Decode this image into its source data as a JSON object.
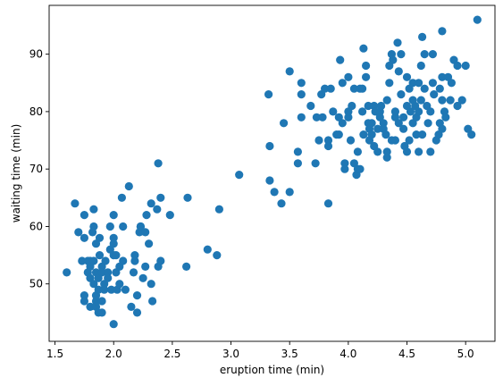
{
  "chart_data": {
    "type": "scatter",
    "title": "",
    "xlabel": "eruption time (min)",
    "ylabel": "waiting time (min)",
    "xlim": [
      1.45,
      5.25
    ],
    "ylim": [
      40,
      98.5
    ],
    "xticks": [
      1.5,
      2.0,
      2.5,
      3.0,
      3.5,
      4.0,
      4.5,
      5.0
    ],
    "xtick_labels": [
      "1.5",
      "2.0",
      "2.5",
      "3.0",
      "3.5",
      "4.0",
      "4.5",
      "5.0"
    ],
    "yticks": [
      50,
      60,
      70,
      80,
      90
    ],
    "ytick_labels": [
      "50",
      "60",
      "70",
      "80",
      "90"
    ],
    "grid": false,
    "marker_color": "#1f77b4",
    "series": [
      {
        "points": [
          [
            1.6,
            52
          ],
          [
            1.67,
            64
          ],
          [
            1.7,
            59
          ],
          [
            1.73,
            54
          ],
          [
            1.75,
            48
          ],
          [
            1.75,
            47
          ],
          [
            1.75,
            62
          ],
          [
            1.75,
            58
          ],
          [
            1.78,
            54
          ],
          [
            1.78,
            52
          ],
          [
            1.8,
            54
          ],
          [
            1.8,
            51
          ],
          [
            1.8,
            46
          ],
          [
            1.8,
            53
          ],
          [
            1.82,
            59
          ],
          [
            1.83,
            60
          ],
          [
            1.83,
            54
          ],
          [
            1.83,
            63
          ],
          [
            1.83,
            50
          ],
          [
            1.85,
            46
          ],
          [
            1.85,
            47
          ],
          [
            1.85,
            48
          ],
          [
            1.85,
            57
          ],
          [
            1.85,
            52
          ],
          [
            1.87,
            45
          ],
          [
            1.87,
            49
          ],
          [
            1.87,
            51
          ],
          [
            1.88,
            55
          ],
          [
            1.88,
            58
          ],
          [
            1.9,
            53
          ],
          [
            1.9,
            52
          ],
          [
            1.9,
            47
          ],
          [
            1.9,
            45
          ],
          [
            1.92,
            50
          ],
          [
            1.92,
            49
          ],
          [
            1.93,
            54
          ],
          [
            1.95,
            52
          ],
          [
            1.95,
            51
          ],
          [
            1.97,
            60
          ],
          [
            1.97,
            56
          ],
          [
            1.98,
            49
          ],
          [
            2.0,
            43
          ],
          [
            2.0,
            62
          ],
          [
            2.0,
            55
          ],
          [
            2.0,
            57
          ],
          [
            2.0,
            58
          ],
          [
            2.02,
            52
          ],
          [
            2.02,
            55
          ],
          [
            2.03,
            49
          ],
          [
            2.05,
            53
          ],
          [
            2.05,
            50
          ],
          [
            2.07,
            65
          ],
          [
            2.08,
            54
          ],
          [
            2.08,
            60
          ],
          [
            2.1,
            49
          ],
          [
            2.13,
            67
          ],
          [
            2.15,
            46
          ],
          [
            2.17,
            52
          ],
          [
            2.18,
            54
          ],
          [
            2.18,
            55
          ],
          [
            2.2,
            48
          ],
          [
            2.2,
            45
          ],
          [
            2.22,
            59
          ],
          [
            2.23,
            60
          ],
          [
            2.23,
            60
          ],
          [
            2.25,
            51
          ],
          [
            2.27,
            53
          ],
          [
            2.27,
            59
          ],
          [
            2.28,
            62
          ],
          [
            2.3,
            57
          ],
          [
            2.32,
            64
          ],
          [
            2.32,
            50
          ],
          [
            2.33,
            47
          ],
          [
            2.37,
            63
          ],
          [
            2.38,
            71
          ],
          [
            2.38,
            53
          ],
          [
            2.4,
            54
          ],
          [
            2.4,
            65
          ],
          [
            2.48,
            62
          ],
          [
            2.62,
            53
          ],
          [
            2.63,
            65
          ],
          [
            2.8,
            56
          ],
          [
            2.88,
            55
          ],
          [
            2.9,
            63
          ],
          [
            3.07,
            69
          ],
          [
            3.32,
            83
          ],
          [
            3.33,
            74
          ],
          [
            3.33,
            68
          ],
          [
            3.37,
            66
          ],
          [
            3.43,
            64
          ],
          [
            3.45,
            78
          ],
          [
            3.5,
            66
          ],
          [
            3.5,
            87
          ],
          [
            3.57,
            71
          ],
          [
            3.57,
            73
          ],
          [
            3.6,
            83
          ],
          [
            3.6,
            85
          ],
          [
            3.6,
            79
          ],
          [
            3.68,
            81
          ],
          [
            3.72,
            71
          ],
          [
            3.73,
            79
          ],
          [
            3.75,
            75
          ],
          [
            3.77,
            83
          ],
          [
            3.78,
            79
          ],
          [
            3.8,
            84
          ],
          [
            3.83,
            64
          ],
          [
            3.83,
            75
          ],
          [
            3.83,
            74
          ],
          [
            3.85,
            84
          ],
          [
            3.87,
            80
          ],
          [
            3.9,
            76
          ],
          [
            3.92,
            76
          ],
          [
            3.92,
            79
          ],
          [
            3.93,
            89
          ],
          [
            3.95,
            85
          ],
          [
            3.95,
            78
          ],
          [
            3.97,
            70
          ],
          [
            3.97,
            71
          ],
          [
            4.0,
            86
          ],
          [
            4.0,
            79
          ],
          [
            4.0,
            80
          ],
          [
            4.02,
            75
          ],
          [
            4.03,
            81
          ],
          [
            4.05,
            84
          ],
          [
            4.05,
            71
          ],
          [
            4.07,
            69
          ],
          [
            4.08,
            70
          ],
          [
            4.08,
            73
          ],
          [
            4.1,
            70
          ],
          [
            4.1,
            84
          ],
          [
            4.12,
            84
          ],
          [
            4.12,
            80
          ],
          [
            4.13,
            76
          ],
          [
            4.13,
            91
          ],
          [
            4.15,
            88
          ],
          [
            4.15,
            86
          ],
          [
            4.17,
            81
          ],
          [
            4.17,
            78
          ],
          [
            4.18,
            75
          ],
          [
            4.18,
            77
          ],
          [
            4.2,
            76
          ],
          [
            4.2,
            78
          ],
          [
            4.22,
            81
          ],
          [
            4.22,
            74
          ],
          [
            4.23,
            80
          ],
          [
            4.25,
            73
          ],
          [
            4.25,
            77
          ],
          [
            4.27,
            79
          ],
          [
            4.27,
            80
          ],
          [
            4.28,
            81
          ],
          [
            4.3,
            78
          ],
          [
            4.3,
            77
          ],
          [
            4.32,
            76
          ],
          [
            4.33,
            82
          ],
          [
            4.33,
            72
          ],
          [
            4.33,
            73
          ],
          [
            4.35,
            88
          ],
          [
            4.35,
            85
          ],
          [
            4.37,
            90
          ],
          [
            4.37,
            75
          ],
          [
            4.38,
            89
          ],
          [
            4.4,
            79
          ],
          [
            4.4,
            75
          ],
          [
            4.4,
            80
          ],
          [
            4.42,
            92
          ],
          [
            4.43,
            87
          ],
          [
            4.43,
            78
          ],
          [
            4.45,
            83
          ],
          [
            4.45,
            90
          ],
          [
            4.47,
            79
          ],
          [
            4.47,
            77
          ],
          [
            4.48,
            74
          ],
          [
            4.5,
            73
          ],
          [
            4.5,
            81
          ],
          [
            4.5,
            86
          ],
          [
            4.52,
            75
          ],
          [
            4.52,
            84
          ],
          [
            4.53,
            80
          ],
          [
            4.55,
            85
          ],
          [
            4.55,
            82
          ],
          [
            4.55,
            78
          ],
          [
            4.57,
            81
          ],
          [
            4.58,
            76
          ],
          [
            4.58,
            79
          ],
          [
            4.6,
            73
          ],
          [
            4.6,
            85
          ],
          [
            4.6,
            80
          ],
          [
            4.62,
            88
          ],
          [
            4.62,
            82
          ],
          [
            4.63,
            76
          ],
          [
            4.63,
            93
          ],
          [
            4.65,
            84
          ],
          [
            4.65,
            90
          ],
          [
            4.67,
            81
          ],
          [
            4.68,
            78
          ],
          [
            4.7,
            80
          ],
          [
            4.7,
            73
          ],
          [
            4.72,
            90
          ],
          [
            4.72,
            85
          ],
          [
            4.73,
            83
          ],
          [
            4.75,
            75
          ],
          [
            4.77,
            76
          ],
          [
            4.78,
            78
          ],
          [
            4.78,
            84
          ],
          [
            4.8,
            86
          ],
          [
            4.8,
            82
          ],
          [
            4.8,
            94
          ],
          [
            4.8,
            77
          ],
          [
            4.82,
            80
          ],
          [
            4.83,
            79
          ],
          [
            4.85,
            86
          ],
          [
            4.87,
            82
          ],
          [
            4.88,
            85
          ],
          [
            4.9,
            89
          ],
          [
            4.93,
            81
          ],
          [
            4.93,
            88
          ],
          [
            4.97,
            82
          ],
          [
            5.0,
            88
          ],
          [
            5.02,
            77
          ],
          [
            5.05,
            76
          ],
          [
            5.1,
            96
          ]
        ]
      }
    ]
  }
}
